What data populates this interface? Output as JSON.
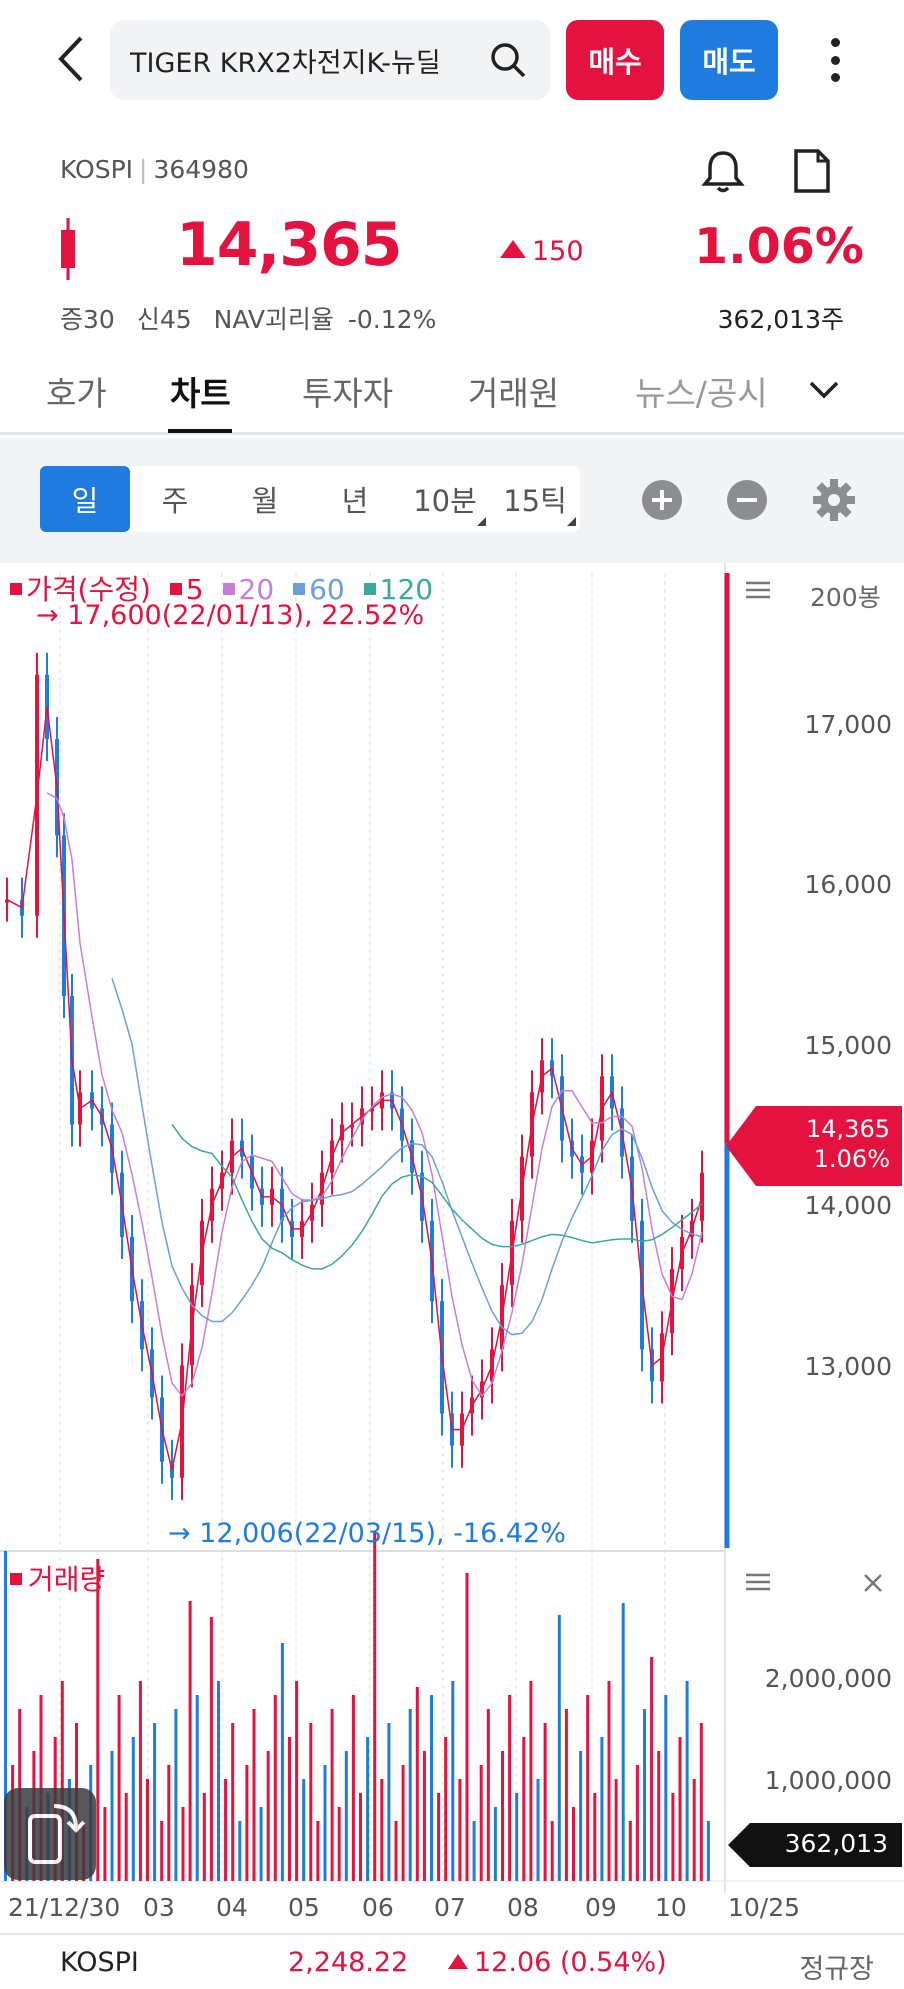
{
  "header": {
    "search_query": "TIGER KRX2차전지K-뉴딜",
    "buy_label": "매수",
    "sell_label": "매도"
  },
  "ticker": {
    "market": "KOSPI",
    "code": "364980",
    "price": "14,365",
    "change": "150",
    "change_pct": "1.06%",
    "margin_rate": "증30",
    "credit_rate": "신45",
    "nav": "NAV괴리율 -0.12%",
    "volume": "362,013주"
  },
  "tabs": [
    "호가",
    "차트",
    "투자자",
    "거래원",
    "뉴스/공시"
  ],
  "periods": [
    "일",
    "주",
    "월",
    "년",
    "10분",
    "15틱"
  ],
  "chart_data": {
    "type": "candlestick",
    "legend": {
      "price": "가격(수정)",
      "ma": [
        {
          "name": "5",
          "color": "#e3123f"
        },
        {
          "name": "20",
          "color": "#c77fd6"
        },
        {
          "name": "60",
          "color": "#6a9fd8"
        },
        {
          "name": "120",
          "color": "#3aa99a"
        }
      ]
    },
    "high_annotation": "17,600(22/01/13), 22.52%",
    "low_annotation": "12,006(22/03/15), -16.42%",
    "bars_count": "200봉",
    "y_ticks": [
      "17,000",
      "16,000",
      "15,000",
      "14,000",
      "13,000"
    ],
    "y_range": [
      12006,
      17600
    ],
    "current_price": "14,365",
    "current_pct": "1.06%",
    "volume_label": "거래량",
    "volume_ticks": [
      "2,000,000",
      "1,000,000"
    ],
    "current_volume": "362,013",
    "x_labels": [
      "21/12/30",
      "03",
      "04",
      "05",
      "06",
      "07",
      "08",
      "09",
      "10",
      "10/25"
    ],
    "colors": {
      "up": "#e3123f",
      "down": "#1f7bdd"
    }
  },
  "footer": {
    "index_name": "KOSPI",
    "index_value": "2,248.22",
    "index_change": "12.06 (0.54%)",
    "market_status": "정규장"
  }
}
